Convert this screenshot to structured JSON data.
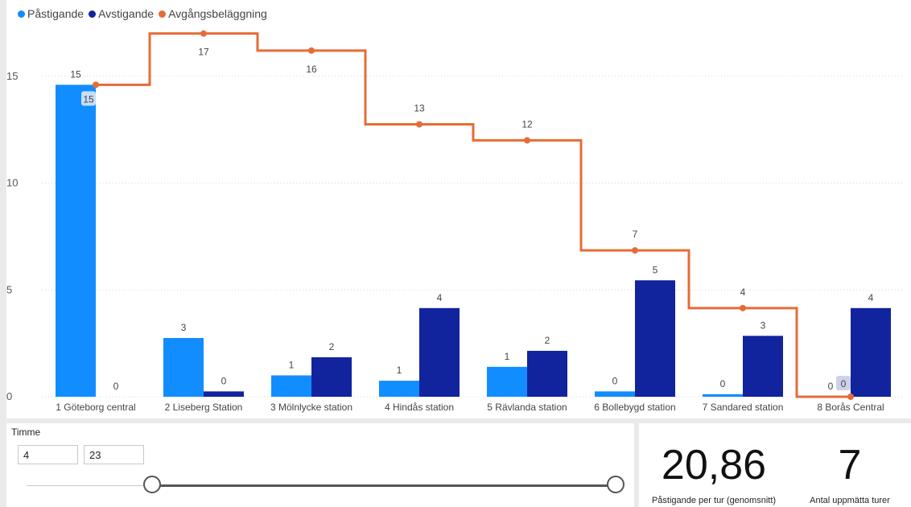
{
  "chart_data": {
    "type": "bar",
    "categories": [
      "1 Göteborg central",
      "2 Liseberg Station",
      "3 Mölnlycke station",
      "4 Hindås station",
      "5 Rävlanda station",
      "6 Bollebygd station",
      "7 Sandared station",
      "8 Borås Central"
    ],
    "series": [
      {
        "name": "Påstigande",
        "type": "bar",
        "values": [
          15,
          3,
          1,
          1,
          1,
          0,
          0,
          0
        ],
        "bar_heights": [
          14.6,
          2.75,
          1.0,
          0.75,
          1.4,
          0.25,
          0.12,
          0.0
        ],
        "color": "#118dff"
      },
      {
        "name": "Avstigande",
        "type": "bar",
        "values": [
          0,
          0,
          2,
          4,
          2,
          5,
          3,
          4
        ],
        "bar_heights": [
          0.0,
          0.25,
          1.85,
          4.15,
          2.15,
          5.45,
          2.85,
          4.15
        ],
        "color": "#12239e"
      },
      {
        "name": "Avgångsbeläggning",
        "type": "step-line",
        "values": [
          15,
          17,
          16,
          13,
          12,
          7,
          4,
          0
        ],
        "line_values": [
          14.6,
          17.0,
          16.2,
          12.75,
          12.0,
          6.85,
          4.15,
          0.0
        ],
        "color": "#e66c37"
      }
    ],
    "y_ticks": [
      0,
      5,
      10,
      15
    ],
    "ylim": [
      0,
      18.2
    ],
    "grid": true,
    "legend_position": "top-left"
  },
  "legend": [
    {
      "label": "Påstigande",
      "color": "#118dff"
    },
    {
      "label": "Avstigande",
      "color": "#12239e"
    },
    {
      "label": "Avgångsbeläggning",
      "color": "#e66c37"
    }
  ],
  "slicer": {
    "title": "Timme",
    "min_value": "4",
    "max_value": "23",
    "lower_fraction": 0.0,
    "upper_fraction": 1.0
  },
  "kpis": [
    {
      "value": "20,86",
      "label": "Påstigande per tur (genomsnitt)"
    },
    {
      "value": "7",
      "label": "Antal uppmätta turer"
    }
  ]
}
